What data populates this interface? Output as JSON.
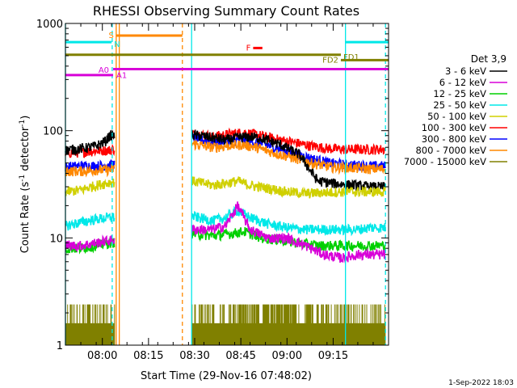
{
  "chart_data": {
    "type": "line",
    "title": "RHESSI Observing Summary Count Rates",
    "xlabel": "Start Time (29-Nov-16 07:48:02)",
    "ylabel": "Count Rate (s",
    "ylabel_sup": "-1",
    "ylabel_tail": " detector",
    "ylabel_sup2": "-1",
    "ylabel_close": ")",
    "y_scale": "log",
    "ylim": [
      1,
      1000
    ],
    "xlim_minutes": [
      0,
      105
    ],
    "y_ticks": [
      {
        "value": 1,
        "label": "1"
      },
      {
        "value": 10,
        "label": "10"
      },
      {
        "value": 100,
        "label": "100"
      },
      {
        "value": 1000,
        "label": "1000"
      }
    ],
    "x_ticks": [
      {
        "minute": 12,
        "label": "08:00"
      },
      {
        "minute": 27,
        "label": "08:15"
      },
      {
        "minute": 42,
        "label": "08:30"
      },
      {
        "minute": 57,
        "label": "08:45"
      },
      {
        "minute": 72,
        "label": "09:00"
      },
      {
        "minute": 87,
        "label": "09:15"
      }
    ],
    "legend_title": "Det 3,9",
    "legend_placement": "right",
    "timestamp": "1-Sep-2022 18:03",
    "data_gaps_minutes": [
      [
        16.0,
        41.0
      ]
    ],
    "series": [
      {
        "name": "3 - 6 keV",
        "color": "#000000",
        "base": 64,
        "points": [
          [
            0,
            66
          ],
          [
            5,
            68
          ],
          [
            10,
            72
          ],
          [
            13,
            80
          ],
          [
            14.4,
            90
          ],
          [
            41,
            92
          ],
          [
            48,
            86
          ],
          [
            52,
            82
          ],
          [
            56,
            86
          ],
          [
            60,
            88
          ],
          [
            64,
            85
          ],
          [
            70,
            74
          ],
          [
            76,
            60
          ],
          [
            82,
            34
          ],
          [
            88,
            32
          ],
          [
            94,
            31
          ],
          [
            99,
            30
          ]
        ]
      },
      {
        "name": "6 - 12 keV",
        "color": "#d800d8",
        "base": 8,
        "points": [
          [
            0,
            8.5
          ],
          [
            5,
            8.5
          ],
          [
            10,
            9
          ],
          [
            14.4,
            9.5
          ],
          [
            41,
            12
          ],
          [
            48,
            12
          ],
          [
            52,
            13
          ],
          [
            56,
            20
          ],
          [
            60,
            12
          ],
          [
            66,
            10
          ],
          [
            72,
            10
          ],
          [
            78,
            8.5
          ],
          [
            84,
            7
          ],
          [
            90,
            6.5
          ],
          [
            95,
            7
          ],
          [
            99,
            7
          ]
        ]
      },
      {
        "name": "12 - 25 keV",
        "color": "#00d000",
        "base": 8,
        "points": [
          [
            0,
            8
          ],
          [
            5,
            8
          ],
          [
            10,
            8.5
          ],
          [
            14.4,
            9
          ],
          [
            41,
            11
          ],
          [
            48,
            10.5
          ],
          [
            54,
            11
          ],
          [
            58,
            11.5
          ],
          [
            64,
            10
          ],
          [
            70,
            9.5
          ],
          [
            76,
            9
          ],
          [
            82,
            8.5
          ],
          [
            88,
            8.5
          ],
          [
            94,
            8.5
          ],
          [
            99,
            8.5
          ]
        ]
      },
      {
        "name": "25 - 50 keV",
        "color": "#00e8e8",
        "base": 14,
        "points": [
          [
            0,
            13
          ],
          [
            5,
            14
          ],
          [
            10,
            15
          ],
          [
            14.4,
            15.5
          ],
          [
            41,
            16
          ],
          [
            48,
            14.5
          ],
          [
            52,
            15.5
          ],
          [
            56,
            18
          ],
          [
            60,
            15.5
          ],
          [
            66,
            13.5
          ],
          [
            72,
            12.5
          ],
          [
            78,
            12
          ],
          [
            84,
            12
          ],
          [
            90,
            12
          ],
          [
            95,
            12
          ],
          [
            99,
            12.5
          ]
        ]
      },
      {
        "name": "50 - 100 keV",
        "color": "#d0d000",
        "base": 30,
        "points": [
          [
            0,
            27
          ],
          [
            5,
            28
          ],
          [
            10,
            31
          ],
          [
            14.4,
            33
          ],
          [
            41,
            34
          ],
          [
            48,
            31
          ],
          [
            56,
            34
          ],
          [
            60,
            31
          ],
          [
            66,
            29
          ],
          [
            72,
            27
          ],
          [
            78,
            26
          ],
          [
            84,
            26.5
          ],
          [
            90,
            27
          ],
          [
            95,
            27
          ],
          [
            99,
            27
          ]
        ]
      },
      {
        "name": "100 - 300 keV",
        "color": "#ff0000",
        "base": 62,
        "points": [
          [
            0,
            62
          ],
          [
            5,
            63
          ],
          [
            10,
            65
          ],
          [
            14.4,
            66
          ],
          [
            41,
            95
          ],
          [
            48,
            88
          ],
          [
            54,
            94
          ],
          [
            58,
            96
          ],
          [
            62,
            92
          ],
          [
            68,
            84
          ],
          [
            74,
            78
          ],
          [
            80,
            72
          ],
          [
            86,
            68
          ],
          [
            92,
            67
          ],
          [
            99,
            67
          ]
        ]
      },
      {
        "name": "300 - 800 keV",
        "color": "#0000ff",
        "base": 45,
        "points": [
          [
            0,
            46
          ],
          [
            5,
            47
          ],
          [
            10,
            47
          ],
          [
            14.4,
            48
          ],
          [
            41,
            86
          ],
          [
            48,
            78
          ],
          [
            54,
            80
          ],
          [
            58,
            83
          ],
          [
            62,
            78
          ],
          [
            68,
            70
          ],
          [
            74,
            62
          ],
          [
            80,
            55
          ],
          [
            86,
            50
          ],
          [
            92,
            48
          ],
          [
            99,
            47
          ]
        ]
      },
      {
        "name": "800 - 7000 keV",
        "color": "#ff8800",
        "base": 42,
        "points": [
          [
            0,
            42
          ],
          [
            5,
            42
          ],
          [
            10,
            43
          ],
          [
            14.4,
            43
          ],
          [
            41,
            76
          ],
          [
            48,
            70
          ],
          [
            54,
            73
          ],
          [
            58,
            74
          ],
          [
            62,
            70
          ],
          [
            68,
            62
          ],
          [
            74,
            56
          ],
          [
            80,
            50
          ],
          [
            86,
            46
          ],
          [
            92,
            45
          ],
          [
            99,
            44
          ]
        ]
      },
      {
        "name": "7000 - 15000 keV",
        "color": "#808000",
        "base": 1.5,
        "points": [
          [
            0,
            1.5
          ],
          [
            14.4,
            1.5
          ],
          [
            41,
            1.5
          ],
          [
            99,
            1.5
          ]
        ]
      }
    ],
    "annotations": [
      {
        "label": "S",
        "color": "#ff8800",
        "x0": 16.5,
        "x1": 38,
        "y": 770,
        "label_side": "left"
      },
      {
        "label": "N",
        "color": "#00e8e8",
        "x0": 0,
        "x1": 15,
        "y": 670,
        "label_side": "right"
      },
      {
        "label": "N",
        "color": "#00e8e8",
        "x0": 91,
        "x1": 105,
        "y": 670,
        "label_side": "none"
      },
      {
        "label": "F",
        "color": "#ff0000",
        "x0": 61,
        "x1": 64,
        "y": 590,
        "label_side": "left"
      },
      {
        "label": "FD1",
        "color": "#808000",
        "x0": 0,
        "x1": 89.5,
        "y": 510,
        "label_side": "right"
      },
      {
        "label": "FD2",
        "color": "#808000",
        "x0": 89.5,
        "x1": 105,
        "y": 455,
        "label_side": "left"
      },
      {
        "label": "A0",
        "color": "#d800d8",
        "x0": 0,
        "x1": 15.5,
        "y": 330,
        "label_side": "above-end"
      },
      {
        "label": "A1",
        "color": "#d800d8",
        "x0": 15.5,
        "x1": 105,
        "y": 375,
        "label_side": "right-start"
      }
    ],
    "vertical_markers": [
      {
        "minute": 0,
        "color": "#00e8e8",
        "style": "solid"
      },
      {
        "minute": 15.2,
        "color": "#00e8e8",
        "style": "dashed"
      },
      {
        "minute": 16.5,
        "color": "#ff8800",
        "style": "solid"
      },
      {
        "minute": 17.5,
        "color": "#ff8800",
        "style": "solid"
      },
      {
        "minute": 38,
        "color": "#ff8800",
        "style": "dashed"
      },
      {
        "minute": 41,
        "color": "#00e8e8",
        "style": "solid"
      },
      {
        "minute": 91,
        "color": "#00e8e8",
        "style": "solid"
      },
      {
        "minute": 104,
        "color": "#00e8e8",
        "style": "dashed"
      }
    ]
  }
}
